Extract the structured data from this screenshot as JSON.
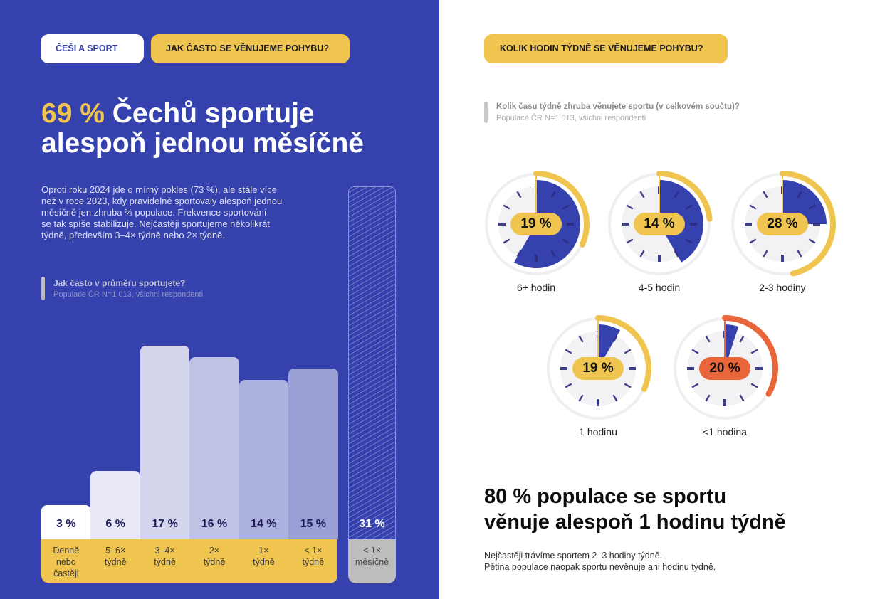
{
  "colors": {
    "brand_blue": "#3541ad",
    "accent_yellow": "#f0c54f",
    "accent_orange": "#e9663a",
    "clock_face": "#f2f2f4",
    "clock_ring": "#efeff3",
    "tick": "#2c2b7f",
    "bar_fills": [
      "#ffffff",
      "#e8e8f6",
      "#d4d6ed",
      "#c1c3e5",
      "#adb1de",
      "#9a9fd6"
    ]
  },
  "left": {
    "tag_primary": "ČEŠI A SPORT",
    "tag_section": "JAK ČASTO SE VĚNUJEME POHYBU?",
    "headline_highlight": "69 %",
    "headline_line1_rest": " Čechů sportuje",
    "headline_line2": "alespoň jednou měsíčně",
    "paragraph_lines": [
      "Oproti roku 2024 jde o mírný pokles (73 %), ale stále více",
      "než v roce 2023, kdy pravidelně sportovaly alespoň jednou",
      "měsíčně jen zhruba ⅔ populace. Frekvence sportování",
      "se tak spíše stabilizuje. Nejčastěji sportujeme několikrát",
      "týdně, především 3–4× týdně nebo 2× týdně."
    ],
    "question": {
      "title": "Jak často v průměru sportujete?",
      "subtitle": "Populace ČR N=1 013, všichni respondenti"
    }
  },
  "right": {
    "tag_section": "KOLIK HODIN TÝDNĚ SE VĚNUJEME POHYBU?",
    "question": {
      "title": "Kolik času týdně zhruba věnujete sportu (v celkovém součtu)?",
      "subtitle": "Populace ČR N=1 013, všichni respondenti"
    },
    "headline_lines": [
      "80 % populace se sportu",
      "věnuje alespoň 1 hodinu týdně"
    ],
    "body_lines": [
      "Nejčastěji trávíme sportem 2–3 hodiny týdně.",
      "Pětina populace naopak sportu nevěnuje ani hodinu týdně."
    ]
  },
  "chart_data": [
    {
      "type": "bar",
      "title": "Jak často v průměru sportujete?",
      "categories": [
        "Denně\nnebo\nčastěji",
        "5–6×\ntýdně",
        "3–4×\ntýdně",
        "2×\ntýdně",
        "1×\ntýdně",
        "< 1×\ntýdně",
        "< 1×\nměsíčně"
      ],
      "values": [
        3,
        6,
        17,
        16,
        14,
        15,
        31
      ],
      "value_labels": [
        "3 %",
        "6 %",
        "17 %",
        "16 %",
        "14 %",
        "15 %",
        "31 %"
      ],
      "unit": "%",
      "ylim": [
        0,
        35
      ],
      "grid": false,
      "highlighted_separate_category": "< 1×\nměsíčně"
    },
    {
      "type": "pie",
      "title": "Kolik času týdně zhruba věnujete sportu (v celkovém součtu)?",
      "categories": [
        "6+ hodin",
        "4-5 hodin",
        "2-3 hodiny",
        "1 hodinu",
        "<1 hodina"
      ],
      "values": [
        19,
        14,
        28,
        19,
        20
      ],
      "value_labels": [
        "19 %",
        "14 %",
        "28 %",
        "19 %",
        "20 %"
      ],
      "unit": "%",
      "arc_full_circle_pct": 60,
      "clock_hours_shown": [
        7,
        5,
        3,
        1,
        0.6
      ],
      "highlight_index": 4
    }
  ]
}
